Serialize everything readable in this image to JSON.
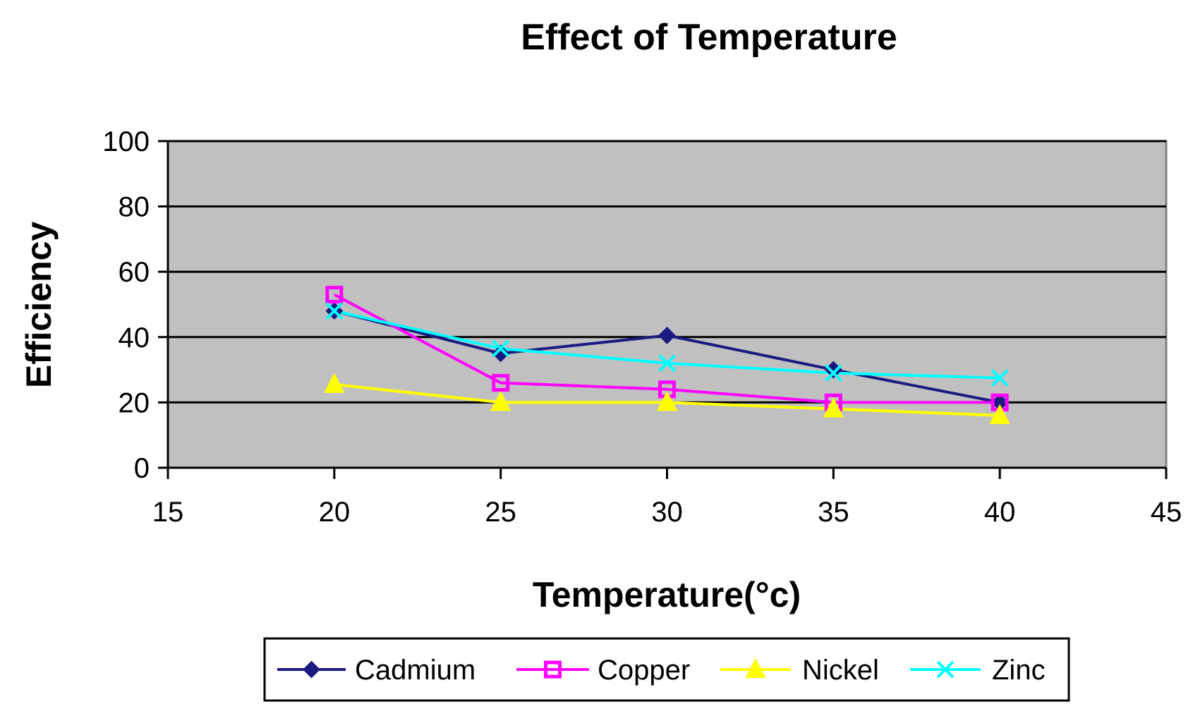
{
  "chart_data": {
    "type": "line",
    "title": "Effect of Temperature",
    "xlabel": "Temperature(°c)",
    "ylabel": "Efficiency",
    "xlim": [
      15,
      45
    ],
    "ylim": [
      0,
      100
    ],
    "xticks": [
      15,
      20,
      25,
      30,
      35,
      40,
      45
    ],
    "yticks": [
      0,
      20,
      40,
      60,
      80,
      100
    ],
    "grid": true,
    "legend_position": "bottom",
    "x": [
      20,
      25,
      30,
      35,
      40
    ],
    "series": [
      {
        "name": "Cadmium",
        "color": "#1a1a80",
        "marker": "diamond",
        "values": [
          48,
          35,
          40.5,
          30,
          20
        ]
      },
      {
        "name": "Copper",
        "color": "#ff00ff",
        "marker": "square",
        "values": [
          53,
          26,
          24,
          20,
          20
        ]
      },
      {
        "name": "Nickel",
        "color": "#ffff00",
        "marker": "triangle",
        "values": [
          25.5,
          20,
          20,
          18,
          16
        ]
      },
      {
        "name": "Zinc",
        "color": "#00ffff",
        "marker": "x",
        "values": [
          48,
          36.5,
          32,
          29,
          27.5
        ]
      }
    ],
    "plot_background": "#c0c0c0"
  }
}
